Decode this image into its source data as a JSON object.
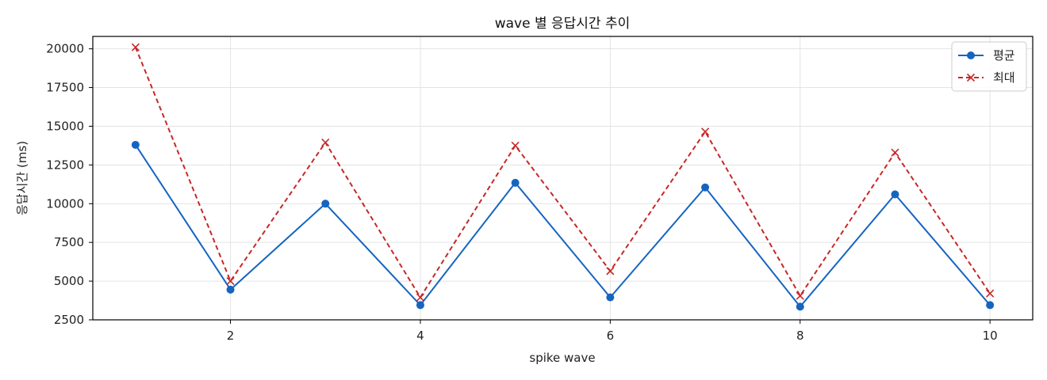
{
  "chart_data": {
    "type": "line",
    "title": "wave 별 응답시간 추이",
    "xlabel": "spike wave",
    "ylabel": "응답시간 (ms)",
    "x": [
      1,
      2,
      3,
      4,
      5,
      6,
      7,
      8,
      9,
      10
    ],
    "xlim": [
      0.55,
      10.45
    ],
    "ylim": [
      2500,
      20800
    ],
    "xticks": [
      2,
      4,
      6,
      8,
      10
    ],
    "yticks": [
      2500,
      5000,
      7500,
      10000,
      12500,
      15000,
      17500,
      20000
    ],
    "grid": true,
    "legend_position": "top-right",
    "series": [
      {
        "name": "평균",
        "values": [
          13800,
          4450,
          10000,
          3450,
          11350,
          3950,
          11050,
          3350,
          10600,
          3450
        ],
        "color": "#1565c0",
        "marker": "circle",
        "line_style": "solid"
      },
      {
        "name": "최대",
        "values": [
          20100,
          5000,
          13950,
          3950,
          13750,
          5650,
          14650,
          4050,
          13300,
          4200
        ],
        "color": "#c62828",
        "marker": "x",
        "line_style": "dashed"
      }
    ]
  }
}
